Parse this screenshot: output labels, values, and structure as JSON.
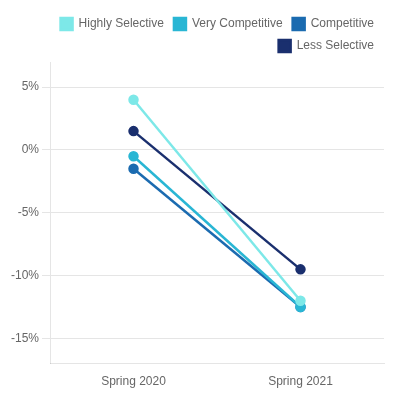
{
  "chart_data": {
    "type": "line",
    "categories": [
      "Spring 2020",
      "Spring 2021"
    ],
    "series": [
      {
        "name": "Highly Selective",
        "color": "#7DE8E8",
        "values": [
          4.0,
          -12.0
        ],
        "marker": "circle"
      },
      {
        "name": "Very Competitive",
        "color": "#29B6D4",
        "values": [
          -0.5,
          -12.5
        ],
        "marker": "circle"
      },
      {
        "name": "Competitive",
        "color": "#1B6BB0",
        "values": [
          -1.5,
          -12.5
        ],
        "marker": "circle"
      },
      {
        "name": "Less Selective",
        "color": "#1A2F6E",
        "values": [
          1.5,
          -9.5
        ],
        "marker": "circle"
      }
    ],
    "ylim": [
      -17,
      7
    ],
    "yticks": [
      {
        "value": -15,
        "label": "-15%"
      },
      {
        "value": -10,
        "label": "-10%"
      },
      {
        "value": -5,
        "label": "-5%"
      },
      {
        "value": 0,
        "label": "0%"
      },
      {
        "value": 5,
        "label": "5%"
      }
    ],
    "grid": true,
    "legend": "upper right"
  }
}
